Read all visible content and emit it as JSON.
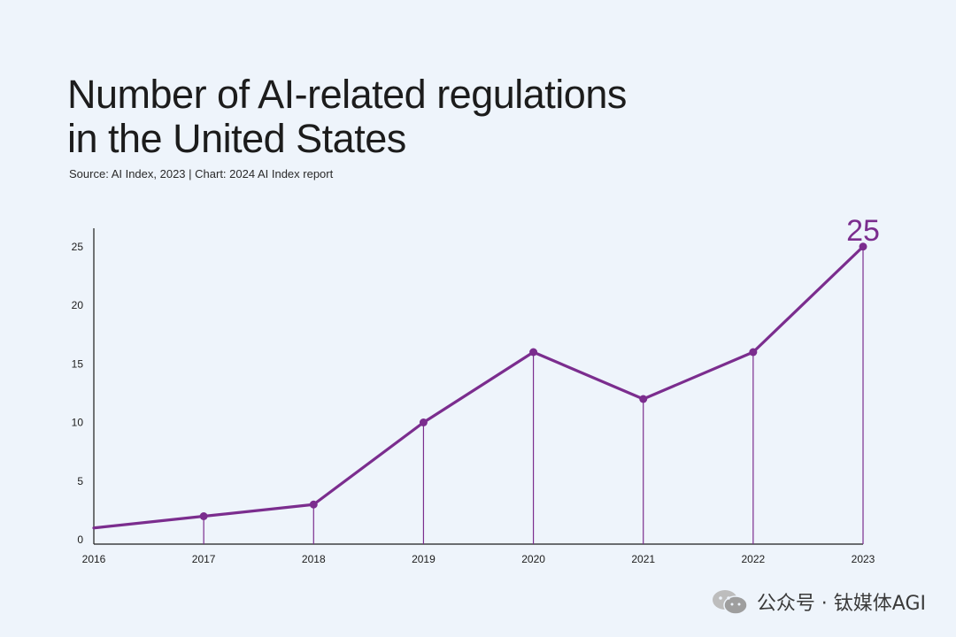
{
  "chart_data": {
    "type": "line",
    "title_lines": [
      "Number of AI-related regulations",
      "in the United States"
    ],
    "source": "Source: AI Index, 2023 | Chart: 2024 AI Index report",
    "x": [
      "2016",
      "2017",
      "2018",
      "2019",
      "2020",
      "2021",
      "2022",
      "2023"
    ],
    "values": [
      1,
      2,
      3,
      10,
      16,
      12,
      16,
      25
    ],
    "y_ticks": [
      0,
      5,
      10,
      15,
      20,
      25
    ],
    "ylim": [
      0,
      27
    ],
    "callout": {
      "index": 7,
      "text": "25"
    },
    "line_color": "#7b2d8e",
    "axis_color": "#1c1c1c"
  },
  "watermark": {
    "icon": "wechat-icon",
    "text": "公众号 · 钛媒体AGI"
  }
}
